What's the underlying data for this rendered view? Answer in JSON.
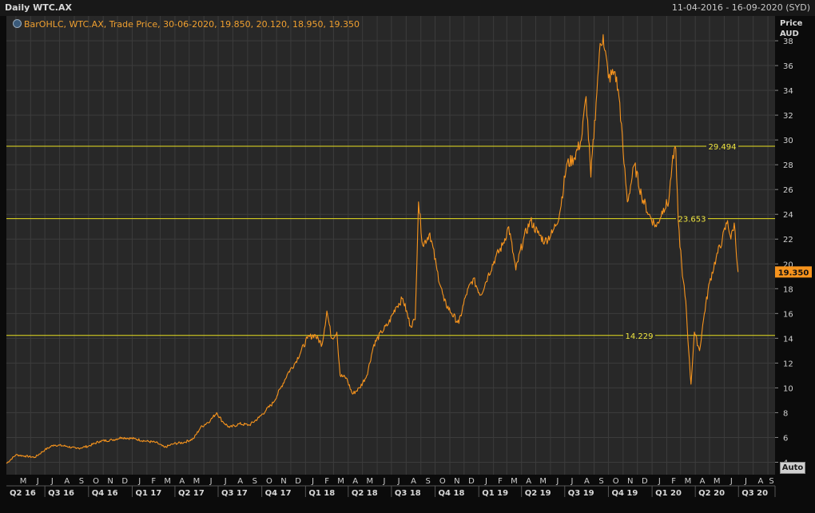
{
  "header": {
    "title": "Daily WTC.AX",
    "date_range": "11-04-2016 - 16-09-2020 (SYD)"
  },
  "legend": {
    "text": "BarOHLC, WTC.AX, Trade Price, 30-06-2020, 19.850, 20.120, 18.950, 19.350",
    "icon": "info-circle-icon"
  },
  "y_axis": {
    "title_line1": "Price",
    "title_line2": "AUD"
  },
  "auto_label": "Auto",
  "colors": {
    "background": "#282828",
    "grid": "#3c3c3c",
    "price_line": "#f7941d",
    "level_line": "#e8e020",
    "last_price_box": "#f7941d"
  },
  "chart_data": {
    "type": "line",
    "title": "Daily WTC.AX",
    "ylabel": "Price AUD",
    "ylim": [
      3,
      40
    ],
    "yticks": [
      4,
      6,
      8,
      10,
      12,
      14,
      16,
      18,
      20,
      22,
      24,
      26,
      28,
      30,
      32,
      34,
      36,
      38
    ],
    "x_start": "2016-04-11",
    "x_end": "2020-09-16",
    "last_price": "19.350",
    "levels": [
      {
        "value": 29.494,
        "label": "29.494"
      },
      {
        "value": 23.653,
        "label": "23.653"
      },
      {
        "value": 14.229,
        "label": "14.229"
      }
    ],
    "month_labels": [
      "M",
      "J",
      "J",
      "A",
      "S",
      "O",
      "N",
      "D",
      "J",
      "F",
      "M",
      "A",
      "M",
      "J",
      "J",
      "A",
      "S",
      "O",
      "N",
      "D",
      "J",
      "F",
      "M",
      "A",
      "M",
      "J",
      "J",
      "A",
      "S",
      "O",
      "N",
      "D",
      "J",
      "F",
      "M",
      "A",
      "M",
      "J",
      "J",
      "A",
      "S",
      "O",
      "N",
      "D",
      "J",
      "F",
      "M",
      "A",
      "M",
      "J",
      "J",
      "A",
      "S"
    ],
    "quarter_labels": [
      "Q2 16",
      "Q3 16",
      "Q4 16",
      "Q1 17",
      "Q2 17",
      "Q3 17",
      "Q4 17",
      "Q1 18",
      "Q2 18",
      "Q3 18",
      "Q4 18",
      "Q1 19",
      "Q2 19",
      "Q3 19",
      "Q4 19",
      "Q1 20",
      "Q2 20",
      "Q3 20"
    ],
    "series": [
      {
        "values": [
          [
            "2016-04-11",
            3.9
          ],
          [
            "2016-05-01",
            4.6
          ],
          [
            "2016-05-20",
            4.5
          ],
          [
            "2016-06-10",
            4.4
          ],
          [
            "2016-07-01",
            5.0
          ],
          [
            "2016-07-20",
            5.4
          ],
          [
            "2016-08-15",
            5.3
          ],
          [
            "2016-09-05",
            5.1
          ],
          [
            "2016-10-01",
            5.3
          ],
          [
            "2016-10-25",
            5.7
          ],
          [
            "2016-11-20",
            5.8
          ],
          [
            "2016-12-10",
            6.0
          ],
          [
            "2017-01-05",
            5.9
          ],
          [
            "2017-01-30",
            5.7
          ],
          [
            "2017-02-20",
            5.6
          ],
          [
            "2017-03-10",
            5.2
          ],
          [
            "2017-03-30",
            5.5
          ],
          [
            "2017-04-20",
            5.6
          ],
          [
            "2017-05-10",
            5.9
          ],
          [
            "2017-05-25",
            6.8
          ],
          [
            "2017-06-15",
            7.4
          ],
          [
            "2017-06-28",
            8.0
          ],
          [
            "2017-07-10",
            7.3
          ],
          [
            "2017-07-25",
            6.8
          ],
          [
            "2017-08-15",
            7.1
          ],
          [
            "2017-09-05",
            7.0
          ],
          [
            "2017-09-25",
            7.6
          ],
          [
            "2017-10-10",
            8.2
          ],
          [
            "2017-10-25",
            8.8
          ],
          [
            "2017-11-10",
            10.0
          ],
          [
            "2017-11-25",
            11.2
          ],
          [
            "2017-12-10",
            12.0
          ],
          [
            "2018-01-05",
            14.0
          ],
          [
            "2018-01-20",
            14.3
          ],
          [
            "2018-02-05",
            13.5
          ],
          [
            "2018-02-15",
            16.2
          ],
          [
            "2018-02-25",
            14.0
          ],
          [
            "2018-03-08",
            14.5
          ],
          [
            "2018-03-15",
            11.0
          ],
          [
            "2018-03-28",
            10.8
          ],
          [
            "2018-04-10",
            9.5
          ],
          [
            "2018-04-25",
            10.0
          ],
          [
            "2018-05-10",
            11.0
          ],
          [
            "2018-05-25",
            13.5
          ],
          [
            "2018-06-10",
            14.5
          ],
          [
            "2018-06-25",
            15.2
          ],
          [
            "2018-07-10",
            16.5
          ],
          [
            "2018-07-25",
            17.2
          ],
          [
            "2018-08-10",
            15.0
          ],
          [
            "2018-08-20",
            15.5
          ],
          [
            "2018-08-27",
            25.0
          ],
          [
            "2018-09-05",
            21.5
          ],
          [
            "2018-09-20",
            22.5
          ],
          [
            "2018-10-05",
            19.5
          ],
          [
            "2018-10-20",
            17.0
          ],
          [
            "2018-11-05",
            16.0
          ],
          [
            "2018-11-20",
            15.2
          ],
          [
            "2018-12-05",
            17.5
          ],
          [
            "2018-12-20",
            18.8
          ],
          [
            "2019-01-05",
            17.5
          ],
          [
            "2019-01-20",
            19.0
          ],
          [
            "2019-02-05",
            20.5
          ],
          [
            "2019-02-20",
            21.5
          ],
          [
            "2019-03-05",
            23.0
          ],
          [
            "2019-03-20",
            19.5
          ],
          [
            "2019-04-05",
            22.0
          ],
          [
            "2019-04-20",
            23.5
          ],
          [
            "2019-05-05",
            22.5
          ],
          [
            "2019-05-20",
            21.8
          ],
          [
            "2019-06-05",
            22.5
          ],
          [
            "2019-06-20",
            24.0
          ],
          [
            "2019-07-05",
            28.0
          ],
          [
            "2019-07-20",
            28.5
          ],
          [
            "2019-08-05",
            30.0
          ],
          [
            "2019-08-15",
            33.5
          ],
          [
            "2019-08-25",
            27.0
          ],
          [
            "2019-09-05",
            33.0
          ],
          [
            "2019-09-12",
            37.0
          ],
          [
            "2019-09-20",
            38.5
          ],
          [
            "2019-10-01",
            35.0
          ],
          [
            "2019-10-15",
            35.5
          ],
          [
            "2019-10-25",
            33.0
          ],
          [
            "2019-11-01",
            29.0
          ],
          [
            "2019-11-10",
            25.0
          ],
          [
            "2019-11-25",
            28.0
          ],
          [
            "2019-12-10",
            25.5
          ],
          [
            "2019-12-25",
            24.0
          ],
          [
            "2020-01-10",
            23.0
          ],
          [
            "2020-01-25",
            24.5
          ],
          [
            "2020-02-05",
            25.0
          ],
          [
            "2020-02-12",
            28.0
          ],
          [
            "2020-02-20",
            29.3
          ],
          [
            "2020-02-25",
            23.5
          ],
          [
            "2020-03-05",
            19.0
          ],
          [
            "2020-03-12",
            17.0
          ],
          [
            "2020-03-18",
            13.0
          ],
          [
            "2020-03-23",
            10.3
          ],
          [
            "2020-03-30",
            14.5
          ],
          [
            "2020-04-10",
            13.0
          ],
          [
            "2020-04-20",
            16.0
          ],
          [
            "2020-05-01",
            18.5
          ],
          [
            "2020-05-15",
            20.5
          ],
          [
            "2020-05-28",
            22.0
          ],
          [
            "2020-06-08",
            23.5
          ],
          [
            "2020-06-15",
            22.0
          ],
          [
            "2020-06-22",
            23.3
          ],
          [
            "2020-06-30",
            19.35
          ]
        ]
      }
    ]
  }
}
